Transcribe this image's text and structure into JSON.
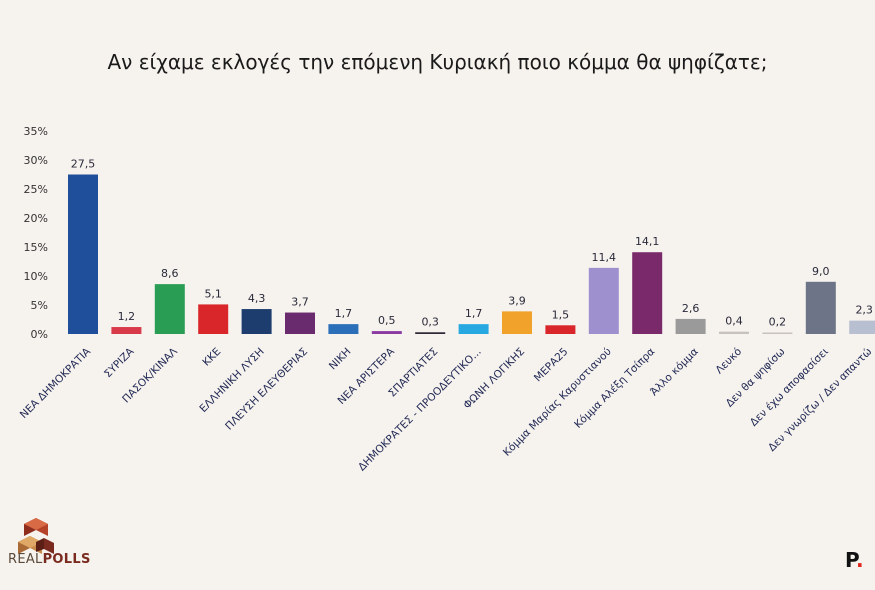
{
  "title": "Αν είχαμε εκλογές την επόμενη Κυριακή ποιο κόμμα θα ψηφίζατε;",
  "logo": {
    "left": "REAL",
    "right": "POLLS"
  },
  "brand": {
    "letter": "P",
    "dot": "."
  },
  "chart_data": {
    "type": "bar",
    "ylim": [
      0,
      35
    ],
    "yticks": [
      "0%",
      "5%",
      "10%",
      "15%",
      "20%",
      "25%",
      "30%",
      "35%"
    ],
    "grid": false,
    "categories": [
      "ΝΕΑ ΔΗΜΟΚΡΑΤΙΑ",
      "ΣΥΡΙΖΑ",
      "ΠΑΣΟΚ/ΚΙΝΑΛ",
      "ΚΚΕ",
      "ΕΛΛΗΝΙΚΗ ΛΥΣΗ",
      "ΠΛΕΥΣΗ ΕΛΕΥΘΕΡΙΑΣ",
      "ΝΙΚΗ",
      "ΝΕΑ ΑΡΙΣΤΕΡΑ",
      "ΣΠΑΡΤΙΑΤΕΣ",
      "ΔΗΜΟΚΡΑΤΕΣ - ΠΡΟΟΔΕΥΤΙΚΟ...",
      "ΦΩΝΗ ΛΟΓΙΚΗΣ",
      "ΜΕΡΑ25",
      "Κόμμα Μαρίας Καρυστιανού",
      "Κόμμα Αλέξη Τσίπρα",
      "Άλλο κόμμα",
      "Λευκό",
      "Δεν θα ψηφίσω",
      "Δεν έχω αποφασίσει",
      "Δεν γνωρίζω / Δεν απαντώ"
    ],
    "values": [
      27.5,
      1.2,
      8.6,
      5.1,
      4.3,
      3.7,
      1.7,
      0.5,
      0.3,
      1.7,
      3.9,
      1.5,
      11.4,
      14.1,
      2.6,
      0.4,
      0.2,
      9.0,
      2.3
    ],
    "labels": [
      "27,5",
      "1,2",
      "8,6",
      "5,1",
      "4,3",
      "3,7",
      "1,7",
      "0,5",
      "0,3",
      "1,7",
      "3,9",
      "1,5",
      "11,4",
      "14,1",
      "2,6",
      "0,4",
      "0,2",
      "9,0",
      "2,3"
    ],
    "colors": [
      "#1f4e9a",
      "#d93a4a",
      "#2a9d55",
      "#d9262a",
      "#1d3d6e",
      "#6a2a6e",
      "#2a6fb8",
      "#8a3aa0",
      "#2e2a3a",
      "#27a8e0",
      "#f0a22a",
      "#d9262a",
      "#9e8fcf",
      "#7a2a6a",
      "#9a9a9a",
      "#c8c2bd",
      "#c8c2bd",
      "#6d7487",
      "#b8bfd0"
    ]
  }
}
